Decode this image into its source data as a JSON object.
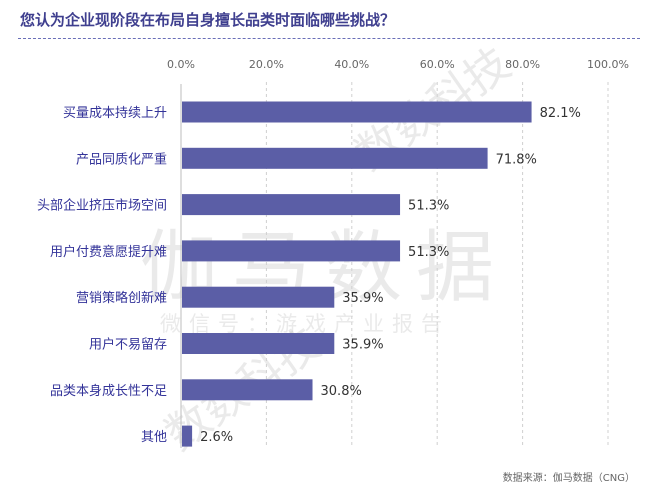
{
  "title": "您认为企业现阶段在布局自身擅长品类时面临哪些挑战？",
  "source": "数据来源：伽马数据（CNG）",
  "watermark": {
    "main": "伽马数据",
    "sub": "微信号：游戏产业报告",
    "diagonal": "数数科技"
  },
  "colors": {
    "bar": "#5b5ea6",
    "title": "#3f3f8f",
    "grid": "#d0d0d0"
  },
  "chart_data": {
    "type": "bar",
    "orientation": "horizontal",
    "categories": [
      "买量成本持续上升",
      "产品同质化严重",
      "头部企业挤压市场空间",
      "用户付费意愿提升难",
      "营销策略创新难",
      "用户不易留存",
      "品类本身成长性不足",
      "其他"
    ],
    "values": [
      82.1,
      71.8,
      51.3,
      51.3,
      35.9,
      35.9,
      30.8,
      2.6
    ],
    "value_labels": [
      "82.1%",
      "71.8%",
      "51.3%",
      "51.3%",
      "35.9%",
      "35.9%",
      "30.8%",
      "2.6%"
    ],
    "xlim": [
      0,
      100
    ],
    "ticks": [
      0,
      20,
      40,
      60,
      80,
      100
    ],
    "tick_labels": [
      "0.0%",
      "20.0%",
      "40.0%",
      "60.0%",
      "80.0%",
      "100.0%"
    ],
    "axis_position": "top",
    "grid": "vertical-dashed"
  }
}
